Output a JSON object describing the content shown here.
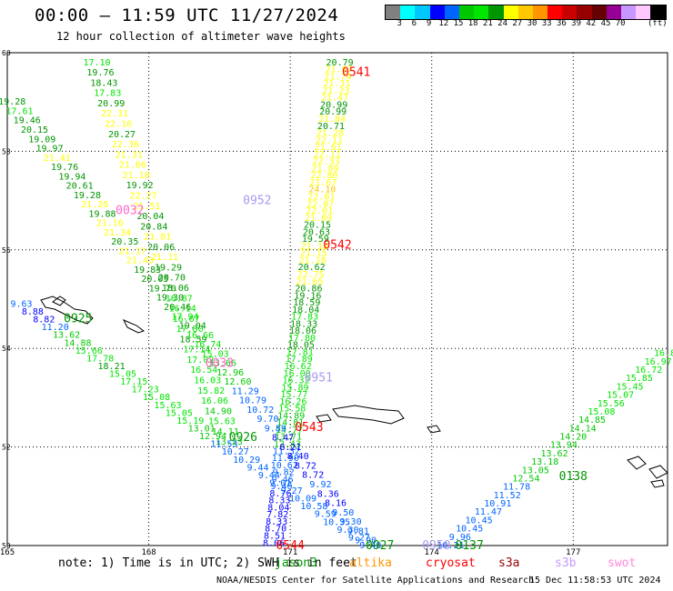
{
  "title": "00:00 – 11:59 UTC 11/27/2024",
  "subtitle": "12 hour collection of altimeter wave heights",
  "legend": {
    "unit": "(ft)",
    "colors": [
      "#808080",
      "#00ffff",
      "#00c8ff",
      "#0000ff",
      "#0064ff",
      "#00c800",
      "#00e600",
      "#009600",
      "#ffff00",
      "#ffc800",
      "#ff9600",
      "#ff0000",
      "#c80000",
      "#960000",
      "#640000",
      "#960096",
      "#c896ff",
      "#ffc8ff",
      "#000000"
    ],
    "labels": [
      {
        "text": "3",
        "after": 1
      },
      {
        "text": "6",
        "after": 2
      },
      {
        "text": "9",
        "after": 3
      },
      {
        "text": "12",
        "after": 4
      },
      {
        "text": "15",
        "after": 5
      },
      {
        "text": "18",
        "after": 6
      },
      {
        "text": "21",
        "after": 7
      },
      {
        "text": "24",
        "after": 8
      },
      {
        "text": "27",
        "after": 9
      },
      {
        "text": "30",
        "after": 10
      },
      {
        "text": "33",
        "after": 11
      },
      {
        "text": "36",
        "after": 12
      },
      {
        "text": "39",
        "after": 13
      },
      {
        "text": "42",
        "after": 14
      },
      {
        "text": "45",
        "after": 15
      },
      {
        "text": "70",
        "after": 16
      }
    ]
  },
  "map": {
    "lon_range": [
      165,
      179
    ],
    "lat_range": [
      50,
      60
    ],
    "lon_ticks": [
      "165",
      "168",
      "171",
      "174",
      "177"
    ],
    "lat_ticks": [
      "60",
      "58",
      "56",
      "54",
      "52",
      "50"
    ],
    "lon_tick_values": [
      165,
      168,
      171,
      174,
      177
    ],
    "lat_tick_values": [
      60,
      58,
      56,
      54,
      52,
      50
    ],
    "pass_labels": [
      {
        "text": "0541",
        "lon": 172.4,
        "lat": 59.6,
        "color": "#ff0000"
      },
      {
        "text": "0542",
        "lon": 172.0,
        "lat": 56.1,
        "color": "#ff0000"
      },
      {
        "text": "0543",
        "lon": 171.4,
        "lat": 52.4,
        "color": "#ff0000"
      },
      {
        "text": "0544",
        "lon": 171.0,
        "lat": 50.0,
        "color": "#ff0000"
      },
      {
        "text": "0032",
        "lon": 167.6,
        "lat": 56.8,
        "color": "#ff66cc"
      },
      {
        "text": "0033",
        "lon": 169.5,
        "lat": 53.7,
        "color": "#ff66cc"
      },
      {
        "text": "0952",
        "lon": 170.3,
        "lat": 57.0,
        "color": "#aa99ee"
      },
      {
        "text": "0951",
        "lon": 171.6,
        "lat": 53.4,
        "color": "#aa99ee"
      },
      {
        "text": "0950",
        "lon": 174.1,
        "lat": 50.0,
        "color": "#aa99ee"
      },
      {
        "text": "0925",
        "lon": 166.5,
        "lat": 54.6,
        "color": "#009600"
      },
      {
        "text": "0926",
        "lon": 170.0,
        "lat": 52.2,
        "color": "#009600"
      },
      {
        "text": "0927",
        "lon": 172.9,
        "lat": 50.0,
        "color": "#009600"
      },
      {
        "text": "0138",
        "lon": 177.0,
        "lat": 51.4,
        "color": "#009600"
      },
      {
        "text": "0137",
        "lon": 174.8,
        "lat": 50.0,
        "color": "#009600"
      }
    ],
    "tracks": [
      {
        "name": "0541-0544",
        "lat0": 59.8,
        "lon0": 172.05,
        "lat1": 50.05,
        "lon1": 170.65,
        "values": [
          "20.79",
          "21.67",
          "21.74",
          "21.31",
          "21.23",
          "21.47",
          "20.99",
          "20.99",
          "21.84",
          "20.71",
          "21.28",
          "22.11",
          "21.61",
          "22.11",
          "22.33",
          "21.89",
          "22.80",
          "21.67",
          "24.10",
          "22.01",
          "22.07",
          "22.01",
          "21.69",
          "20.15",
          "20.63",
          "19.59",
          "21.18",
          "21.15",
          "21.18",
          "20.62",
          "22.75",
          "21.65",
          "20.86",
          "19.16",
          "18.59",
          "18.04",
          "17.83",
          "18.33",
          "18.06",
          "17.80",
          "18.05",
          "17.81",
          "17.89",
          "16.62",
          "16.00",
          "16.32",
          "15.89",
          "15.77",
          "16.26",
          "15.58",
          "14.89",
          "14.81",
          "14.77",
          "13.71",
          "12.43",
          "11.32",
          "11.90",
          "10.62",
          "9.82",
          "9.46",
          "9.40",
          "8.76",
          "8.33",
          "8.04",
          "7.82",
          "8.33",
          "8.70",
          "8.51",
          "8.06"
        ]
      },
      {
        "name": "0032-0033",
        "lat0": 59.8,
        "lon0": 166.9,
        "lat1": 52.1,
        "lon1": 169.7,
        "values": [
          "17.10",
          "19.76",
          "18.43",
          "17.83",
          "20.99",
          "22.31",
          "22.16",
          "20.27",
          "22.36",
          "21.31",
          "21.66",
          "21.10",
          "19.92",
          "22.27",
          "21.51",
          "20.04",
          "20.84",
          "21.81",
          "20.06",
          "21.11",
          "19.29",
          "20.70",
          "18.06",
          "16.87",
          "16.14",
          "16.67",
          "17.80",
          "18.59",
          "17.14",
          "17.02",
          "16.54",
          "16.03",
          "15.82",
          "16.06",
          "14.90",
          "15.63",
          "14.11",
          "13.23"
        ]
      },
      {
        "name": "0952-0950",
        "lat0": 59.0,
        "lon0": 165.1,
        "lat1": 50.1,
        "lon1": 172.6,
        "values": [
          "19.28",
          "17.61",
          "19.46",
          "20.15",
          "19.09",
          "19.97",
          "21.41",
          "19.76",
          "19.94",
          "20.61",
          "19.28",
          "21.26",
          "19.88",
          "21.16",
          "21.34",
          "20.35",
          "21.17",
          "21.43",
          "19.83",
          "20.05",
          "19.70",
          "19.30",
          "20.46",
          "17.94",
          "19.04",
          "16.66",
          "16.74",
          "15.03",
          "13.66",
          "12.96",
          "12.60",
          "11.29",
          "10.79",
          "10.72",
          "9.70",
          "9.89",
          "8.47",
          "8.21",
          "8.40",
          "8.72",
          "8.72",
          "9.92",
          "8.36",
          "8.16",
          "9.50",
          "9.30",
          "9.81",
          "9.90"
        ]
      },
      {
        "name": "0925-0927",
        "lat0": 54.9,
        "lon0": 165.3,
        "lat1": 50.0,
        "lon1": 172.7,
        "values": [
          "9.63",
          "8.88",
          "8.82",
          "11.20",
          "13.62",
          "14.88",
          "15.66",
          "17.78",
          "18.21",
          "15.05",
          "17.15",
          "17.23",
          "15.08",
          "15.63",
          "15.05",
          "15.19",
          "13.01",
          "12.94",
          "11.53",
          "10.27",
          "10.29",
          "9.44",
          "9.44",
          "9.01",
          "9.27",
          "10.09",
          "10.58",
          "9.59",
          "10.35",
          "9.30",
          "9.27",
          "9.40"
        ]
      },
      {
        "name": "0137-0138",
        "lat0": 50.0,
        "lon0": 174.4,
        "lat1": 53.9,
        "lon1": 179.0,
        "values": [
          "10.21",
          "9.96",
          "10.45",
          "10.45",
          "11.47",
          "10.91",
          "11.52",
          "11.78",
          "12.54",
          "13.05",
          "13.18",
          "13.62",
          "13.94",
          "14.20",
          "14.14",
          "14.85",
          "15.08",
          "15.56",
          "15.07",
          "15.45",
          "15.85",
          "16.72",
          "16.97",
          "16.80"
        ]
      }
    ]
  },
  "footer_note": "note:  1) Time is in UTC; 2) SWH is in feet",
  "satellites": [
    {
      "name": "jason3",
      "color": "#009600"
    },
    {
      "name": "altika",
      "color": "#ff9600"
    },
    {
      "name": "cryosat",
      "color": "#ff0000"
    },
    {
      "name": "s3a",
      "color": "#960000"
    },
    {
      "name": "s3b",
      "color": "#c896ff"
    },
    {
      "name": "swot",
      "color": "#ff88dd"
    }
  ],
  "credit": "NOAA/NESDIS Center for Satellite Applications and Research",
  "stamp": "15 Dec 11:58:53 UTC 2024"
}
